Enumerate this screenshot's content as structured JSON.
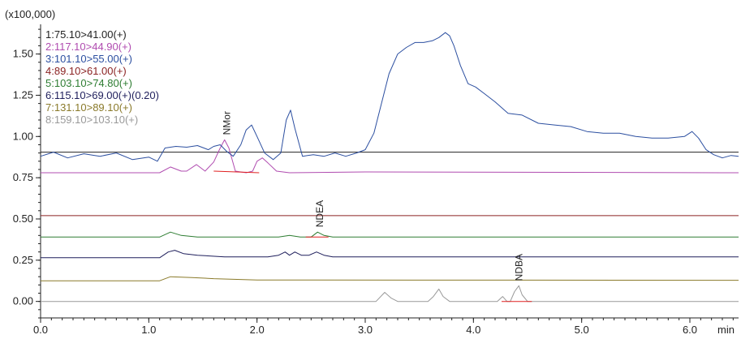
{
  "chart_data": {
    "type": "line",
    "title": "",
    "y_multiplier_label": "(x100,000)",
    "xlabel": "min",
    "ylabel": "",
    "xlim": [
      0.0,
      6.45
    ],
    "ylim": [
      -0.1,
      1.68
    ],
    "x_ticks": [
      {
        "value": 0.0,
        "label": "0.0"
      },
      {
        "value": 1.0,
        "label": "1.0"
      },
      {
        "value": 2.0,
        "label": "2.0"
      },
      {
        "value": 3.0,
        "label": "3.0"
      },
      {
        "value": 4.0,
        "label": "4.0"
      },
      {
        "value": 5.0,
        "label": "5.0"
      },
      {
        "value": 6.0,
        "label": "6.0"
      }
    ],
    "y_ticks": [
      {
        "value": 0.0,
        "label": "0.00"
      },
      {
        "value": 0.25,
        "label": "0.25"
      },
      {
        "value": 0.5,
        "label": "0.50"
      },
      {
        "value": 0.75,
        "label": "0.75"
      },
      {
        "value": 1.0,
        "label": "1.00"
      },
      {
        "value": 1.25,
        "label": "1.25"
      },
      {
        "value": 1.5,
        "label": "1.50"
      }
    ],
    "grid": false,
    "legend_position": "top-left",
    "series": [
      {
        "name": "1:75.10>41.00(+)",
        "color": "#222222",
        "x": [
          0.0,
          6.45
        ],
        "y": [
          0.905,
          0.905
        ]
      },
      {
        "name": "2:117.10>44.90(+)",
        "color": "#b04cb0",
        "x": [
          0.0,
          1.1,
          1.2,
          1.3,
          1.35,
          1.44,
          1.52,
          1.6,
          1.66,
          1.7,
          1.74,
          1.8,
          1.9,
          1.96,
          2.0,
          2.05,
          2.1,
          2.18,
          2.3,
          3.0,
          6.45
        ],
        "y": [
          0.78,
          0.78,
          0.815,
          0.79,
          0.79,
          0.83,
          0.79,
          0.845,
          0.93,
          0.98,
          0.93,
          0.79,
          0.78,
          0.79,
          0.85,
          0.87,
          0.84,
          0.79,
          0.78,
          0.785,
          0.78
        ]
      },
      {
        "name": "3:101.10>55.00(+)",
        "color": "#2c4fa0",
        "x": [
          0.0,
          0.12,
          0.25,
          0.4,
          0.55,
          0.7,
          0.85,
          1.0,
          1.08,
          1.15,
          1.25,
          1.35,
          1.45,
          1.55,
          1.6,
          1.66,
          1.72,
          1.78,
          1.85,
          1.9,
          1.95,
          2.0,
          2.07,
          2.15,
          2.22,
          2.27,
          2.31,
          2.35,
          2.42,
          2.52,
          2.62,
          2.72,
          2.82,
          2.92,
          3.0,
          3.08,
          3.15,
          3.22,
          3.3,
          3.38,
          3.46,
          3.54,
          3.62,
          3.68,
          3.74,
          3.78,
          3.82,
          3.88,
          3.95,
          4.02,
          4.1,
          4.2,
          4.32,
          4.45,
          4.6,
          4.75,
          4.9,
          5.05,
          5.2,
          5.35,
          5.5,
          5.65,
          5.8,
          5.95,
          6.02,
          6.08,
          6.15,
          6.22,
          6.3,
          6.38,
          6.45
        ],
        "y": [
          0.88,
          0.905,
          0.87,
          0.895,
          0.88,
          0.9,
          0.86,
          0.875,
          0.85,
          0.93,
          0.94,
          0.935,
          0.945,
          0.92,
          0.94,
          0.95,
          0.91,
          0.88,
          0.95,
          1.04,
          1.07,
          1.0,
          0.9,
          0.86,
          0.9,
          1.1,
          1.16,
          1.05,
          0.88,
          0.89,
          0.88,
          0.9,
          0.88,
          0.9,
          0.92,
          1.02,
          1.2,
          1.38,
          1.5,
          1.54,
          1.57,
          1.57,
          1.58,
          1.6,
          1.63,
          1.61,
          1.55,
          1.43,
          1.32,
          1.3,
          1.26,
          1.21,
          1.14,
          1.13,
          1.08,
          1.07,
          1.06,
          1.03,
          1.02,
          1.02,
          1.0,
          0.99,
          0.99,
          1.0,
          1.03,
          0.99,
          0.92,
          0.89,
          0.87,
          0.885,
          0.88
        ]
      },
      {
        "name": "4:89.10>61.00(+)",
        "color": "#8b2323",
        "x": [
          0.0,
          6.45
        ],
        "y": [
          0.52,
          0.52
        ]
      },
      {
        "name": "5:103.10>74.80(+)",
        "color": "#2e7d32",
        "x": [
          0.0,
          1.1,
          1.2,
          1.3,
          1.45,
          2.2,
          2.3,
          2.4,
          2.5,
          2.56,
          2.62,
          2.7,
          3.0,
          6.45
        ],
        "y": [
          0.39,
          0.39,
          0.42,
          0.4,
          0.39,
          0.39,
          0.4,
          0.39,
          0.39,
          0.42,
          0.4,
          0.39,
          0.39,
          0.39
        ]
      },
      {
        "name": "6:115.10>69.00(+)(0.20)",
        "color": "#1f1f5c",
        "x": [
          0.0,
          1.1,
          1.18,
          1.24,
          1.32,
          1.45,
          1.7,
          2.1,
          2.2,
          2.26,
          2.3,
          2.35,
          2.41,
          2.48,
          2.55,
          2.62,
          2.7,
          3.0,
          6.45
        ],
        "y": [
          0.265,
          0.265,
          0.3,
          0.31,
          0.29,
          0.28,
          0.27,
          0.27,
          0.28,
          0.3,
          0.28,
          0.3,
          0.28,
          0.28,
          0.3,
          0.28,
          0.27,
          0.27,
          0.27
        ]
      },
      {
        "name": "7:131.10>89.10(+)",
        "color": "#8a7a2a",
        "x": [
          0.0,
          1.1,
          1.2,
          1.4,
          1.6,
          2.0,
          6.45
        ],
        "y": [
          0.125,
          0.125,
          0.15,
          0.145,
          0.138,
          0.13,
          0.128
        ]
      },
      {
        "name": "8:159.10>103.10(+)",
        "color": "#999999",
        "x": [
          0.0,
          3.1,
          3.18,
          3.24,
          3.3,
          3.58,
          3.63,
          3.68,
          3.72,
          3.78,
          4.22,
          4.27,
          4.31,
          4.34,
          4.38,
          4.42,
          4.45,
          4.5,
          6.45
        ],
        "y": [
          0.0,
          0.0,
          0.055,
          0.02,
          0.0,
          0.0,
          0.03,
          0.075,
          0.03,
          0.0,
          0.0,
          0.03,
          0.0,
          0.0,
          0.06,
          0.095,
          0.04,
          0.0,
          0.0
        ]
      }
    ],
    "baselines": [
      {
        "x": [
          1.6,
          2.02
        ],
        "y": [
          0.79,
          0.78
        ],
        "color": "#e02020"
      },
      {
        "x": [
          2.45,
          2.66
        ],
        "y": [
          0.39,
          0.39
        ],
        "color": "#e02020"
      },
      {
        "x": [
          4.26,
          4.54
        ],
        "y": [
          0.0,
          0.0
        ],
        "color": "#e02020"
      }
    ],
    "annotations": [
      {
        "text": "NMor",
        "x": 1.72,
        "y": 0.98
      },
      {
        "text": "NDEA",
        "x": 2.58,
        "y": 0.42
      },
      {
        "text": "NDBA",
        "x": 4.42,
        "y": 0.095
      }
    ]
  }
}
